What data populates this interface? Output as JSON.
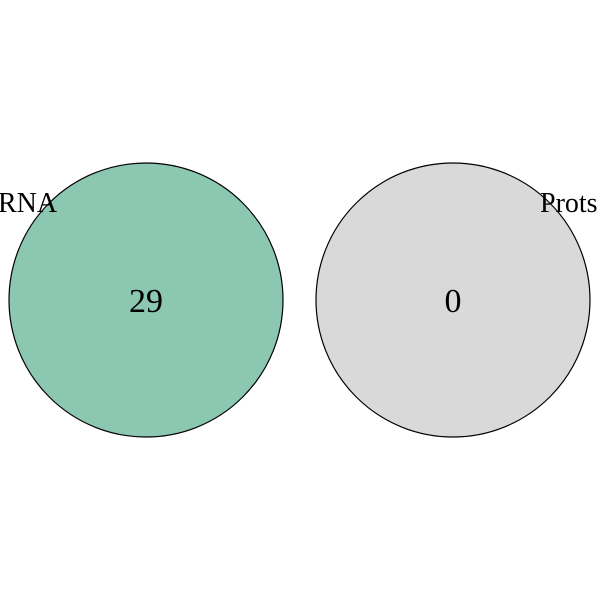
{
  "venn": {
    "sets": [
      {
        "label": "RNA",
        "count": "29",
        "fill": "#8cc7b1"
      },
      {
        "label": "Prots",
        "count": "0",
        "fill": "#d9d9d9"
      }
    ],
    "stroke": "#000000"
  }
}
